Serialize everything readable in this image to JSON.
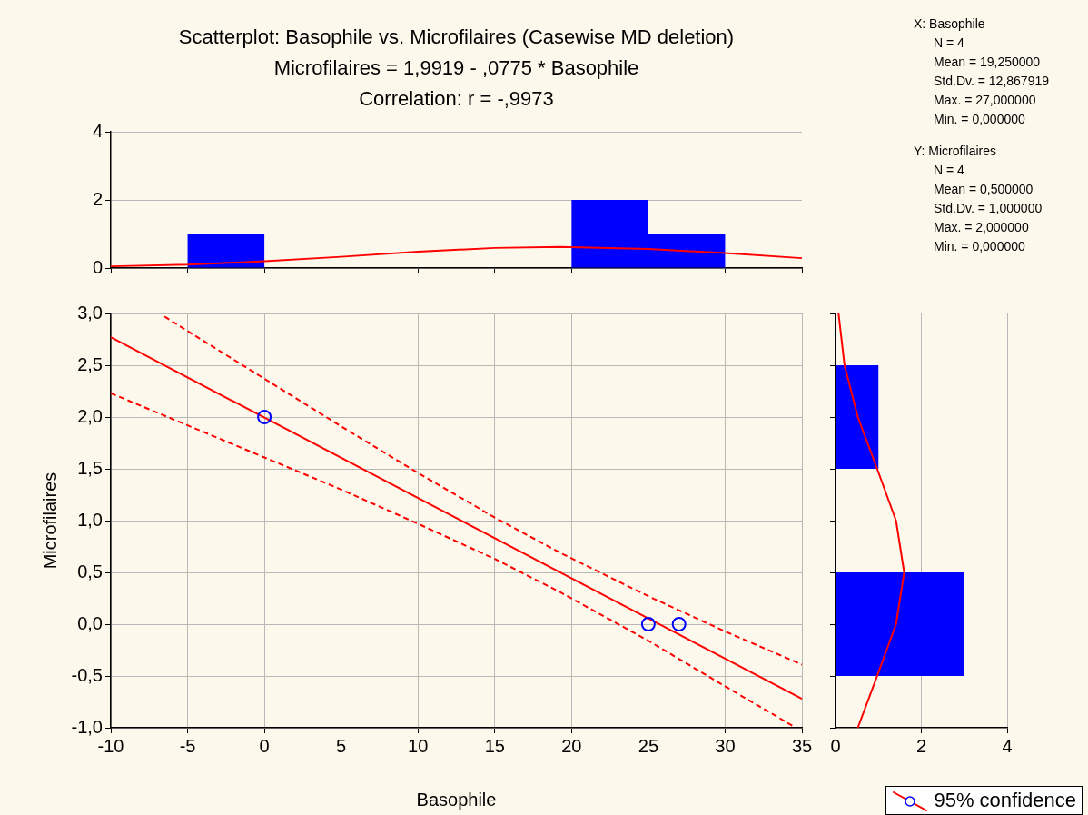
{
  "chart_data": [
    {
      "type": "histogram",
      "title": "Scatterplot: Basophile vs. Microfilaires (Casewise MD deletion)",
      "subtitle": "Microfilaires = 1,9919 - ,0775  * Basophile",
      "annotations": [
        "Correlation: r = -,9973"
      ],
      "bins": [
        -5,
        0,
        5,
        10,
        15,
        20,
        25,
        30
      ],
      "values": [
        1,
        0,
        0,
        0,
        0,
        2,
        1
      ],
      "color": "#0000ff",
      "series": [
        {
          "type": "line",
          "color": "#ff0000",
          "x": [
            -10,
            -5,
            0,
            5,
            10,
            15,
            19.25,
            25,
            30,
            35
          ],
          "values": [
            0.05,
            0.1,
            0.2,
            0.33,
            0.48,
            0.59,
            0.62,
            0.56,
            0.44,
            0.29
          ]
        }
      ],
      "xlim": [
        -10,
        35
      ],
      "xticks": [
        {
          "value": -10,
          "label": null
        },
        {
          "value": -5,
          "label": null
        },
        {
          "value": 0,
          "label": null
        },
        {
          "value": 5,
          "label": null
        },
        {
          "value": 10,
          "label": null
        },
        {
          "value": 15,
          "label": null
        },
        {
          "value": 20,
          "label": null
        },
        {
          "value": 25,
          "label": null
        },
        {
          "value": 30,
          "label": null
        },
        {
          "value": 35,
          "label": null
        }
      ],
      "ylim": [
        0,
        4
      ],
      "yticks": [
        0,
        2,
        4
      ],
      "tick_labels": "y",
      "grid": "y"
    },
    {
      "type": "other",
      "annotations": [
        "X:  Basophile",
        "N = 4",
        "Mean = 19,250000",
        "Std.Dv. = 12,867919",
        "Max. = 27,000000",
        "Min. = 0,000000",
        "Y:  Microfilaires",
        "N = 4",
        "Mean = 0,500000",
        "Std.Dv. = 1,000000",
        "Max. = 2,000000",
        "Min. = 0,000000"
      ]
    },
    {
      "type": "scatter",
      "xlabel": "Basophile",
      "ylabel": "Microfilaires",
      "legend": "bottom right",
      "grid": true,
      "series": [
        {
          "type": "scatter",
          "color": "#0000ff",
          "marker": "circle",
          "x": [
            0,
            25,
            27
          ],
          "values": [
            2,
            0,
            0
          ]
        },
        {
          "type": "line",
          "name": "95% confidence",
          "color": "#ff0000",
          "x": [
            -10,
            35
          ],
          "values": [
            2.77,
            -0.72
          ]
        },
        {
          "type": "line",
          "color": "#ff0000",
          "line_style": "dashed",
          "x": [
            -6.5,
            -5,
            0,
            5,
            10,
            15,
            19.25,
            25,
            30,
            35
          ],
          "values": [
            2.97,
            2.83,
            2.37,
            1.91,
            1.46,
            1.03,
            0.69,
            0.27,
            -0.07,
            -0.39
          ]
        },
        {
          "type": "line",
          "color": "#ff0000",
          "line_style": "dashed",
          "x": [
            -10,
            -5,
            0,
            5,
            10,
            15,
            19.25,
            25,
            30,
            34.5
          ],
          "values": [
            2.23,
            1.92,
            1.61,
            1.3,
            0.97,
            0.63,
            0.31,
            -0.16,
            -0.6,
            -0.99
          ]
        }
      ],
      "xlim": [
        -10,
        35
      ],
      "xticks": [
        -10,
        -5,
        0,
        5,
        10,
        15,
        20,
        25,
        30,
        35
      ],
      "ylim": [
        -1,
        3
      ],
      "yticks": [
        {
          "value": -1,
          "label": "-1,0"
        },
        {
          "value": -0.5,
          "label": "-0,5"
        },
        {
          "value": 0,
          "label": "0,0"
        },
        {
          "value": 0.5,
          "label": "0,5"
        },
        {
          "value": 1,
          "label": "1,0"
        },
        {
          "value": 1.5,
          "label": "1,5"
        },
        {
          "value": 2,
          "label": "2,0"
        },
        {
          "value": 2.5,
          "label": "2,5"
        },
        {
          "value": 3,
          "label": "3,0"
        }
      ]
    },
    {
      "type": "histogram",
      "orientation": "horizontal",
      "bins": [
        -0.5,
        0.5,
        1.5,
        2.5
      ],
      "values": [
        3,
        0,
        1
      ],
      "color": "#0000ff",
      "series": [
        {
          "type": "line",
          "color": "#ff0000",
          "x": [
            -1,
            -0.5,
            0,
            0.5,
            1,
            1.5,
            2,
            2.5,
            3
          ],
          "values": [
            0.52,
            0.97,
            1.41,
            1.6,
            1.41,
            0.97,
            0.52,
            0.21,
            0.07
          ]
        }
      ],
      "xlim": [
        0,
        4
      ],
      "xticks": [
        0,
        2,
        4
      ],
      "ylim": [
        -1,
        3
      ],
      "yticks": [
        {
          "value": -1,
          "label": null
        },
        {
          "value": -0.5,
          "label": null
        },
        {
          "value": 0,
          "label": null
        },
        {
          "value": 0.5,
          "label": null
        },
        {
          "value": 1,
          "label": null
        },
        {
          "value": 1.5,
          "label": null
        },
        {
          "value": 2,
          "label": null
        },
        {
          "value": 2.5,
          "label": null
        },
        {
          "value": 3,
          "label": null
        }
      ],
      "tick_labels": "x",
      "grid": "x"
    }
  ]
}
